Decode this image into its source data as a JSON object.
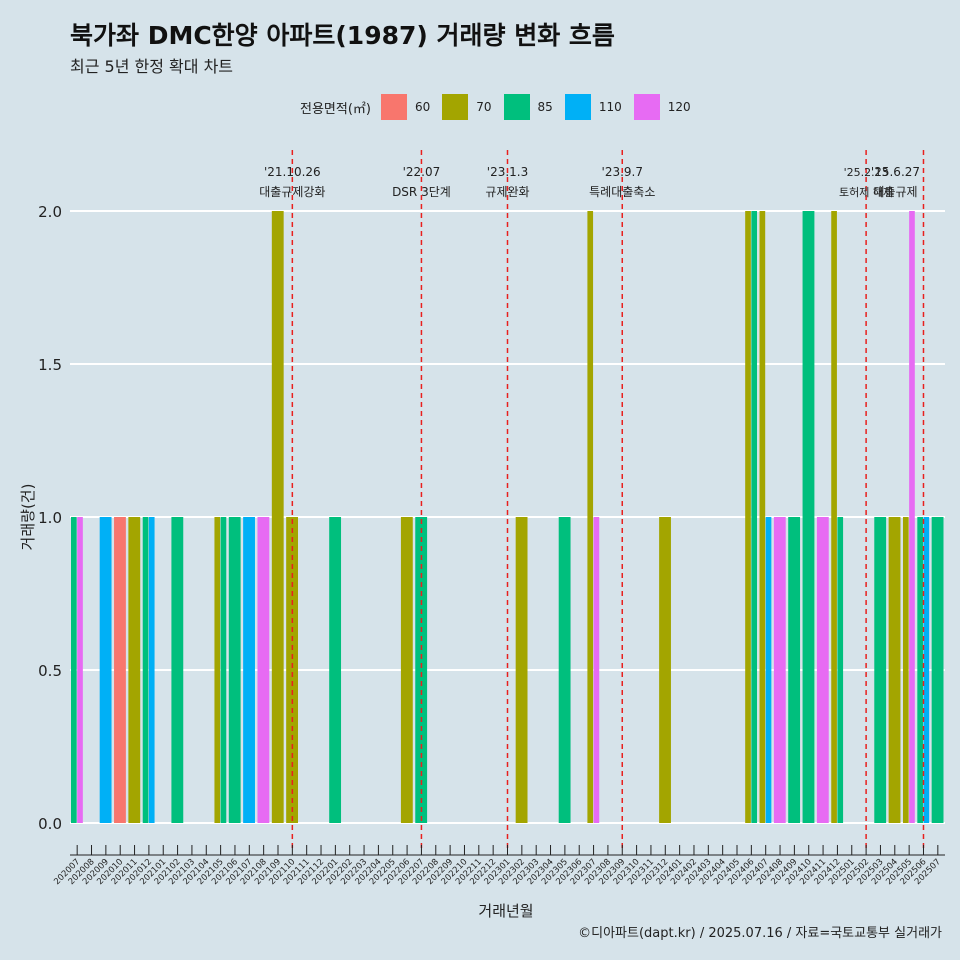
{
  "title": "북가좌 DMC한양 아파트(1987) 거래량 변화 흐름",
  "subtitle": "최근 5년 한정 확대 차트",
  "caption": "©디아파트(dapt.kr) / 2025.07.16 / 자료=국토교통부 실거래가",
  "legend": {
    "title": "전용면적(㎡)",
    "items": [
      {
        "label": "60",
        "color": "#f8766d"
      },
      {
        "label": "70",
        "color": "#a3a500"
      },
      {
        "label": "85",
        "color": "#00bf7d"
      },
      {
        "label": "110",
        "color": "#00b0f6"
      },
      {
        "label": "120",
        "color": "#e76bf3"
      }
    ]
  },
  "colors": {
    "background": "#d6e3ea",
    "grid": "#ffffff",
    "event_line": "#e8201e"
  },
  "chart_data": {
    "type": "bar",
    "xlabel": "거래년월",
    "ylabel": "거래량(건)",
    "ylim": [
      0,
      2.2
    ],
    "yticks": [
      "0.0",
      "0.5",
      "1.0",
      "1.5",
      "2.0"
    ],
    "ytick_values": [
      0,
      0.5,
      1,
      1.5,
      2
    ],
    "categories": [
      "202007",
      "202008",
      "202009",
      "202010",
      "202011",
      "202012",
      "202101",
      "202102",
      "202103",
      "202104",
      "202105",
      "202106",
      "202107",
      "202108",
      "202109",
      "202110",
      "202111",
      "202112",
      "202201",
      "202202",
      "202203",
      "202204",
      "202205",
      "202206",
      "202207",
      "202208",
      "202209",
      "202210",
      "202211",
      "202212",
      "202301",
      "202302",
      "202303",
      "202304",
      "202305",
      "202306",
      "202307",
      "202308",
      "202309",
      "202310",
      "202311",
      "202312",
      "202401",
      "202402",
      "202403",
      "202404",
      "202405",
      "202406",
      "202407",
      "202408",
      "202409",
      "202410",
      "202411",
      "202412",
      "202501",
      "202502",
      "202503",
      "202504",
      "202505",
      "202506",
      "202507"
    ],
    "series": [
      {
        "name": "60",
        "color": "#f8766d",
        "points": [
          [
            "202010",
            1
          ]
        ]
      },
      {
        "name": "70",
        "color": "#a3a500",
        "points": [
          [
            "202011",
            1
          ],
          [
            "202105",
            1
          ],
          [
            "202109",
            2
          ],
          [
            "202110",
            1
          ],
          [
            "202206",
            1
          ],
          [
            "202302",
            1
          ],
          [
            "202307",
            2
          ],
          [
            "202312",
            1
          ],
          [
            "202406",
            2
          ],
          [
            "202407",
            2
          ],
          [
            "202412",
            2
          ],
          [
            "202504",
            1
          ],
          [
            "202505",
            1
          ]
        ]
      },
      {
        "name": "85",
        "color": "#00bf7d",
        "points": [
          [
            "202007",
            1
          ],
          [
            "202012",
            1
          ],
          [
            "202102",
            1
          ],
          [
            "202105",
            1
          ],
          [
            "202106",
            1
          ],
          [
            "202201",
            1
          ],
          [
            "202207",
            1
          ],
          [
            "202305",
            1
          ],
          [
            "202406",
            2
          ],
          [
            "202409",
            1
          ],
          [
            "202410",
            2
          ],
          [
            "202412",
            1
          ],
          [
            "202503",
            1
          ],
          [
            "202506",
            1
          ],
          [
            "202507",
            1
          ]
        ]
      },
      {
        "name": "110",
        "color": "#00b0f6",
        "points": [
          [
            "202009",
            1
          ],
          [
            "202012",
            1
          ],
          [
            "202107",
            1
          ],
          [
            "202407",
            1
          ],
          [
            "202506",
            1
          ]
        ]
      },
      {
        "name": "120",
        "color": "#e76bf3",
        "points": [
          [
            "202007",
            1
          ],
          [
            "202108",
            1
          ],
          [
            "202307",
            1
          ],
          [
            "202408",
            1
          ],
          [
            "202411",
            1
          ],
          [
            "202505",
            2
          ]
        ]
      }
    ],
    "annotations": [
      {
        "date": "'21.10.26",
        "label": "대출규제강화",
        "at": "202110"
      },
      {
        "date": "'22.07",
        "label": "DSR 3단계",
        "at": "202207"
      },
      {
        "date": "'23.1.3",
        "label": "규제완화",
        "at": "202301"
      },
      {
        "date": "'23.9.7",
        "label": "특례대출축소",
        "at": "202309"
      },
      {
        "date": "'25.2.13",
        "label": "토허제 해제",
        "at": "202502"
      },
      {
        "date": "'25.6.27",
        "label": "대출규제",
        "at": "202506"
      }
    ]
  }
}
